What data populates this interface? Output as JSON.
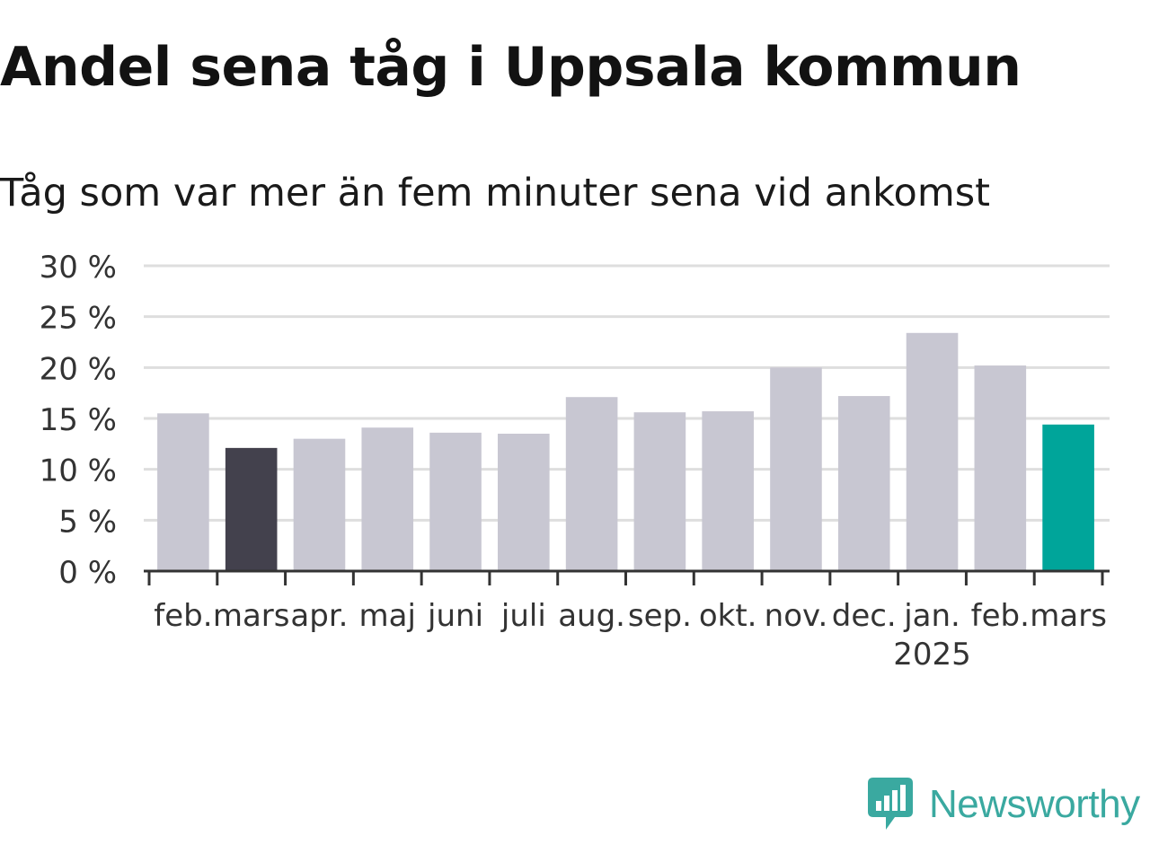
{
  "chart_data": {
    "type": "bar",
    "title": "Andel sena tåg i Uppsala kommun",
    "subtitle": "Tåg som var mer än fem minuter sena vid ankomst",
    "categories": [
      "feb.",
      "mars",
      "apr.",
      "maj",
      "juni",
      "juli",
      "aug.",
      "sep.",
      "okt.",
      "nov.",
      "dec.",
      "jan.",
      "feb.",
      "mars"
    ],
    "year_label": "2025",
    "year_label_under_category_index": 11,
    "values": [
      15.5,
      12.1,
      13.0,
      14.1,
      13.6,
      13.5,
      17.1,
      15.6,
      15.7,
      20.0,
      17.2,
      23.4,
      20.2,
      14.4
    ],
    "highlight": {
      "1": "dark",
      "13": "accent"
    },
    "ylim": [
      0,
      30
    ],
    "yticks": [
      0,
      5,
      10,
      15,
      20,
      25,
      30
    ],
    "ytick_labels": [
      "0 %",
      "5 %",
      "10 %",
      "15 %",
      "20 %",
      "25 %",
      "30 %"
    ],
    "grid": true,
    "colors": {
      "default": "#c8c7d2",
      "dark": "#43414d",
      "accent": "#00a59a",
      "grid": "#dedede",
      "axis": "#333333"
    },
    "xlabel": "",
    "ylabel": ""
  },
  "brand": {
    "name": "Newsworthy",
    "color": "#3aa9a0"
  }
}
